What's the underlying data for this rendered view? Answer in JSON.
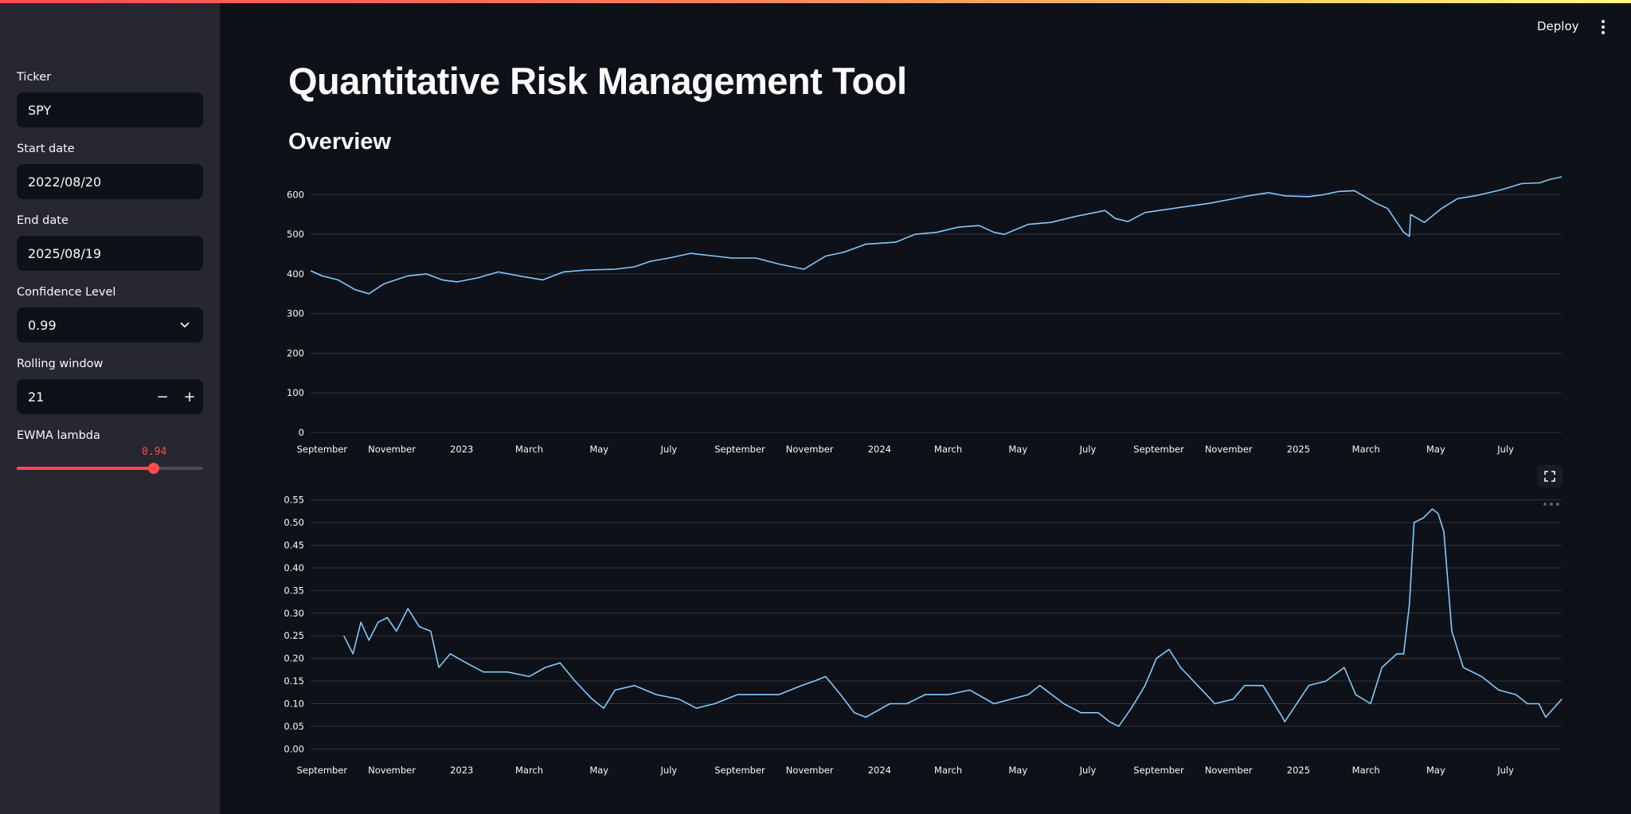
{
  "header": {
    "deploy_label": "Deploy",
    "menu_icon": "kebab-menu-icon"
  },
  "sidebar": {
    "ticker": {
      "label": "Ticker",
      "value": "SPY"
    },
    "start_date": {
      "label": "Start date",
      "value": "2022/08/20"
    },
    "end_date": {
      "label": "End date",
      "value": "2025/08/19"
    },
    "confidence": {
      "label": "Confidence Level",
      "value": "0.99"
    },
    "rolling_window": {
      "label": "Rolling window",
      "value": "21",
      "minus": "−",
      "plus": "+"
    },
    "ewma": {
      "label": "EWMA lambda",
      "value": "0.94",
      "fraction": 0.94
    }
  },
  "main": {
    "title": "Quantitative Risk Management Tool",
    "subheader": "Overview"
  },
  "colors": {
    "accent": "#ff4b4b",
    "line": "#83c9ff",
    "grid": "#31333f",
    "background": "#0e1117",
    "sidebar": "#262730"
  },
  "chart_data": [
    {
      "type": "line",
      "title": "",
      "xlabel": "",
      "ylabel": "",
      "x_tick_labels": [
        "September",
        "November",
        "2023",
        "March",
        "May",
        "July",
        "September",
        "November",
        "2024",
        "March",
        "May",
        "July",
        "September",
        "November",
        "2025",
        "March",
        "May",
        "July"
      ],
      "x_tick_dates": [
        "2022-09-01",
        "2022-11-01",
        "2023-01-01",
        "2023-03-01",
        "2023-05-01",
        "2023-07-01",
        "2023-09-01",
        "2023-11-01",
        "2024-01-01",
        "2024-03-01",
        "2024-05-01",
        "2024-07-01",
        "2024-09-01",
        "2024-11-01",
        "2025-01-01",
        "2025-03-01",
        "2025-05-01",
        "2025-07-01"
      ],
      "xlim": [
        "2022-08-22",
        "2025-08-19"
      ],
      "y_ticks": [
        0,
        100,
        200,
        300,
        400,
        500,
        600
      ],
      "ylim": [
        0,
        645
      ],
      "grid": true,
      "series": [
        {
          "x": [
            "2022-08-22",
            "2022-09-01",
            "2022-09-15",
            "2022-09-30",
            "2022-10-12",
            "2022-10-25",
            "2022-11-15",
            "2022-12-01",
            "2022-12-15",
            "2022-12-28",
            "2023-01-15",
            "2023-02-02",
            "2023-02-20",
            "2023-03-13",
            "2023-03-31",
            "2023-04-20",
            "2023-05-15",
            "2023-06-01",
            "2023-06-15",
            "2023-07-01",
            "2023-07-20",
            "2023-08-10",
            "2023-08-25",
            "2023-09-15",
            "2023-10-05",
            "2023-10-27",
            "2023-11-15",
            "2023-12-01",
            "2023-12-20",
            "2024-01-15",
            "2024-02-01",
            "2024-02-20",
            "2024-03-10",
            "2024-03-28",
            "2024-04-10",
            "2024-04-19",
            "2024-05-10",
            "2024-05-30",
            "2024-06-20",
            "2024-07-16",
            "2024-07-25",
            "2024-08-05",
            "2024-08-20",
            "2024-09-06",
            "2024-09-20",
            "2024-10-15",
            "2024-11-06",
            "2024-11-20",
            "2024-12-06",
            "2024-12-20",
            "2025-01-10",
            "2025-01-23",
            "2025-02-05",
            "2025-02-19",
            "2025-03-10",
            "2025-03-20",
            "2025-04-03",
            "2025-04-08",
            "2025-04-09",
            "2025-04-21",
            "2025-05-06",
            "2025-05-20",
            "2025-06-06",
            "2025-06-27",
            "2025-07-15",
            "2025-07-31",
            "2025-08-08",
            "2025-08-19"
          ],
          "values": [
            408,
            395,
            385,
            360,
            350,
            375,
            395,
            400,
            385,
            380,
            390,
            405,
            395,
            385,
            405,
            410,
            412,
            418,
            432,
            440,
            452,
            445,
            440,
            440,
            425,
            412,
            445,
            455,
            475,
            480,
            500,
            505,
            518,
            522,
            505,
            500,
            525,
            530,
            545,
            560,
            540,
            532,
            555,
            562,
            568,
            578,
            590,
            598,
            605,
            597,
            595,
            600,
            608,
            610,
            578,
            565,
            505,
            495,
            550,
            530,
            565,
            590,
            598,
            612,
            628,
            630,
            638,
            645
          ]
        }
      ]
    },
    {
      "type": "line",
      "title": "",
      "xlabel": "",
      "ylabel": "",
      "x_tick_labels": [
        "September",
        "November",
        "2023",
        "March",
        "May",
        "July",
        "September",
        "November",
        "2024",
        "March",
        "May",
        "July",
        "September",
        "November",
        "2025",
        "March",
        "May",
        "July"
      ],
      "x_tick_dates": [
        "2022-09-01",
        "2022-11-01",
        "2023-01-01",
        "2023-03-01",
        "2023-05-01",
        "2023-07-01",
        "2023-09-01",
        "2023-11-01",
        "2024-01-01",
        "2024-03-01",
        "2024-05-01",
        "2024-07-01",
        "2024-09-01",
        "2024-11-01",
        "2025-01-01",
        "2025-03-01",
        "2025-05-01",
        "2025-07-01"
      ],
      "xlim": [
        "2022-08-22",
        "2025-08-19"
      ],
      "y_ticks": [
        0,
        0.05,
        0.1,
        0.15,
        0.2,
        0.25,
        0.3,
        0.35,
        0.4,
        0.45,
        0.5,
        0.55
      ],
      "ylim": [
        -0.01,
        0.56
      ],
      "grid": true,
      "series": [
        {
          "x": [
            "2022-09-20",
            "2022-09-28",
            "2022-10-05",
            "2022-10-12",
            "2022-10-20",
            "2022-10-28",
            "2022-11-05",
            "2022-11-15",
            "2022-11-25",
            "2022-12-05",
            "2022-12-12",
            "2022-12-22",
            "2023-01-05",
            "2023-01-20",
            "2023-02-10",
            "2023-03-01",
            "2023-03-15",
            "2023-03-28",
            "2023-04-10",
            "2023-04-25",
            "2023-05-05",
            "2023-05-15",
            "2023-06-01",
            "2023-06-20",
            "2023-07-10",
            "2023-07-25",
            "2023-08-10",
            "2023-08-30",
            "2023-09-15",
            "2023-10-05",
            "2023-10-25",
            "2023-11-05",
            "2023-11-15",
            "2023-11-28",
            "2023-12-10",
            "2023-12-20",
            "2024-01-10",
            "2024-01-25",
            "2024-02-10",
            "2024-03-01",
            "2024-03-20",
            "2024-04-10",
            "2024-04-25",
            "2024-05-10",
            "2024-05-20",
            "2024-06-10",
            "2024-06-25",
            "2024-07-10",
            "2024-07-20",
            "2024-07-28",
            "2024-08-08",
            "2024-08-20",
            "2024-08-30",
            "2024-09-10",
            "2024-09-20",
            "2024-10-05",
            "2024-10-20",
            "2024-11-05",
            "2024-11-15",
            "2024-12-01",
            "2024-12-18",
            "2024-12-20",
            "2025-01-10",
            "2025-01-25",
            "2025-02-10",
            "2025-02-20",
            "2025-03-05",
            "2025-03-15",
            "2025-03-28",
            "2025-04-03",
            "2025-04-08",
            "2025-04-12",
            "2025-04-20",
            "2025-04-28",
            "2025-05-03",
            "2025-05-08",
            "2025-05-15",
            "2025-05-25",
            "2025-06-10",
            "2025-06-25",
            "2025-07-10",
            "2025-07-20",
            "2025-07-30",
            "2025-08-05",
            "2025-08-19"
          ],
          "values": [
            0.25,
            0.21,
            0.28,
            0.24,
            0.28,
            0.29,
            0.26,
            0.31,
            0.27,
            0.26,
            0.18,
            0.21,
            0.19,
            0.17,
            0.17,
            0.16,
            0.18,
            0.19,
            0.15,
            0.11,
            0.09,
            0.13,
            0.14,
            0.12,
            0.11,
            0.09,
            0.1,
            0.12,
            0.12,
            0.12,
            0.14,
            0.15,
            0.16,
            0.12,
            0.08,
            0.07,
            0.1,
            0.1,
            0.12,
            0.12,
            0.13,
            0.1,
            0.11,
            0.12,
            0.14,
            0.1,
            0.08,
            0.08,
            0.06,
            0.05,
            0.09,
            0.14,
            0.2,
            0.22,
            0.18,
            0.14,
            0.1,
            0.11,
            0.14,
            0.14,
            0.07,
            0.06,
            0.14,
            0.15,
            0.18,
            0.12,
            0.1,
            0.18,
            0.21,
            0.21,
            0.32,
            0.5,
            0.51,
            0.53,
            0.52,
            0.48,
            0.26,
            0.18,
            0.16,
            0.13,
            0.12,
            0.1,
            0.1,
            0.07,
            0.11
          ]
        }
      ]
    }
  ]
}
